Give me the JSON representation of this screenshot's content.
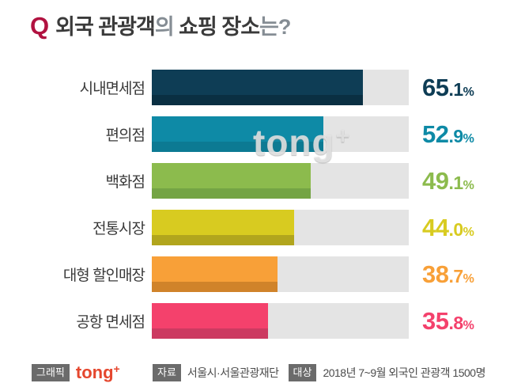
{
  "title": {
    "q_mark": "Q",
    "full": "외국 관광객의 쇼핑 장소는?",
    "parts": [
      {
        "text": "외국 관광객",
        "muted": false
      },
      {
        "text": "의",
        "muted": true
      },
      {
        "text": " 쇼핑 장소",
        "muted": false
      },
      {
        "text": "는?",
        "muted": true
      }
    ]
  },
  "watermark": {
    "text": "tong",
    "plus": "+"
  },
  "chart_data": {
    "type": "bar",
    "orientation": "horizontal",
    "title": "외국 관광객의 쇼핑 장소는?",
    "unit": "%",
    "categories": [
      "시내면세점",
      "편의점",
      "백화점",
      "전통시장",
      "대형 할인매장",
      "공항 면세점"
    ],
    "values": [
      65.1,
      52.9,
      49.1,
      44.0,
      38.7,
      35.8
    ],
    "bar_colors": [
      "#0e3d55",
      "#0e8aa6",
      "#8cbb4d",
      "#d8cb20",
      "#f8a038",
      "#f4416c"
    ],
    "bar_shade_colors": [
      "#0a2f42",
      "#0c7a93",
      "#74a444",
      "#b1a51d",
      "#d0832a",
      "#cc3a61"
    ],
    "track_color": "#e4e4e4",
    "value_label_style": "large-int-small-decimal",
    "legend": "none",
    "grid": "off"
  },
  "footer": {
    "graphic_label": "그래픽",
    "graphic_logo_text": "tong",
    "graphic_logo_plus": "+",
    "source_label": "자료",
    "source_value": "서울시·서울관광재단",
    "target_label": "대상",
    "target_value": "2018년 7~9월 외국인 관광객 1500명"
  }
}
